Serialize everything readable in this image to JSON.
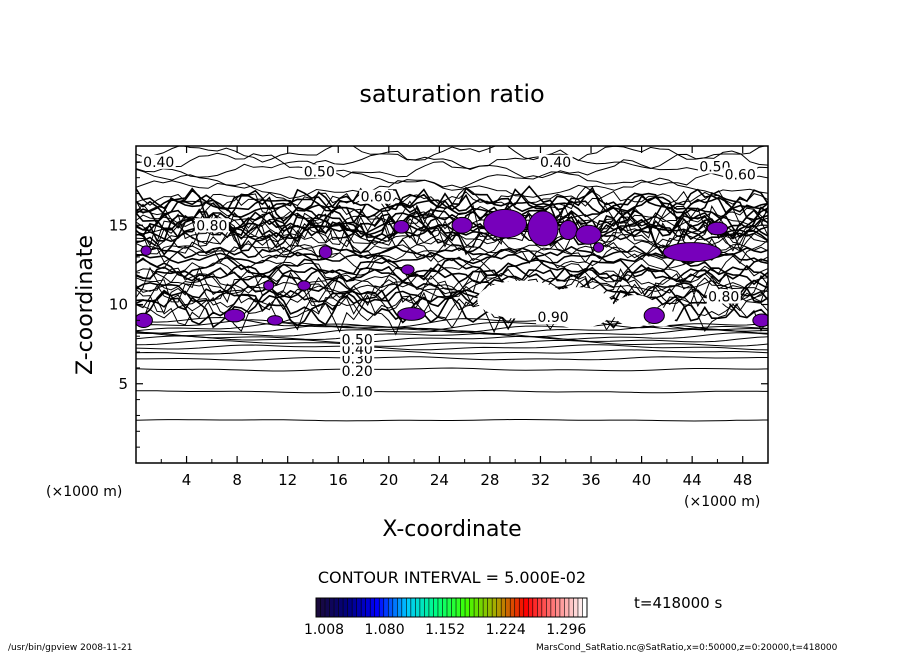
{
  "chart_data": {
    "type": "contour",
    "title": "saturation ratio",
    "xlabel": "X-coordinate",
    "ylabel": "Z-coordinate",
    "x_unit": "(×1000 m)",
    "y_unit": "(×1000 m)",
    "xlim": [
      0,
      50
    ],
    "ylim": [
      0,
      20
    ],
    "x_ticks": [
      "4",
      "8",
      "12",
      "16",
      "20",
      "24",
      "28",
      "32",
      "36",
      "40",
      "44",
      "48"
    ],
    "y_ticks": [
      "5",
      "10",
      "15"
    ],
    "grid": false,
    "contour_interval_text": "CONTOUR INTERVAL = 5.000E-02",
    "contour_labels": [
      {
        "text": "0.10",
        "x": 17.5,
        "z": 4.5
      },
      {
        "text": "0.20",
        "x": 17.5,
        "z": 5.8
      },
      {
        "text": "0.30",
        "x": 17.5,
        "z": 6.6
      },
      {
        "text": "0.40",
        "x": 17.5,
        "z": 7.2
      },
      {
        "text": "0.50",
        "x": 17.5,
        "z": 7.8
      },
      {
        "text": "0.40",
        "x": 1.8,
        "z": 19.0
      },
      {
        "text": "0.50",
        "x": 14.5,
        "z": 18.4
      },
      {
        "text": "0.60",
        "x": 19.0,
        "z": 16.8
      },
      {
        "text": "0.80",
        "x": 6.0,
        "z": 15.0
      },
      {
        "text": "0.40",
        "x": 33.2,
        "z": 19.0
      },
      {
        "text": "0.50",
        "x": 45.8,
        "z": 18.7
      },
      {
        "text": "0.60",
        "x": 47.8,
        "z": 18.2
      },
      {
        "text": "0.80",
        "x": 46.5,
        "z": 10.5
      },
      {
        "text": "0.90",
        "x": 33.0,
        "z": 9.2
      }
    ],
    "supersaturated_regions_color": "#7700bb",
    "colorbar": {
      "ticks": [
        "1.008",
        "1.080",
        "1.152",
        "1.224",
        "1.296"
      ],
      "colors": [
        "#1a0a3c",
        "#000080",
        "#0000ff",
        "#00c8ff",
        "#00ff80",
        "#40ff00",
        "#aaaa00",
        "#ff0000",
        "#ff8080",
        "#ffffff"
      ]
    },
    "time_label": "t=418000  s"
  },
  "footer": {
    "left": "/usr/bin/gpview   2008-11-21",
    "right": "MarsCond_SatRatio.nc@SatRatio,x=0:50000,z=0:20000,t=418000"
  }
}
